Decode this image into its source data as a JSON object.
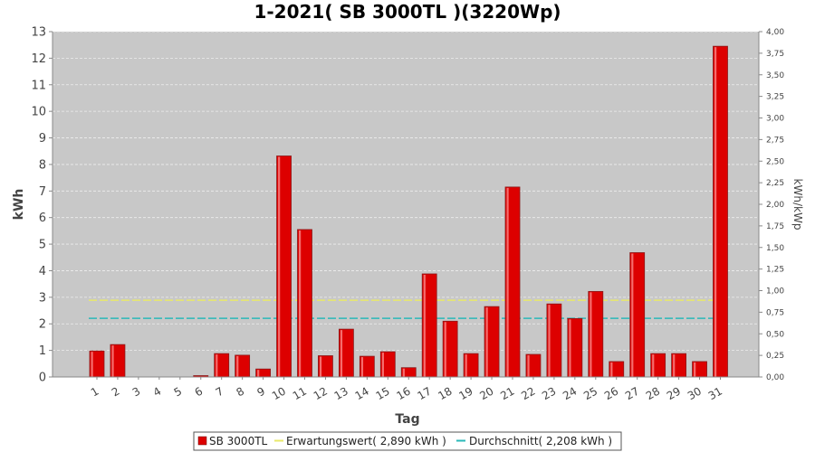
{
  "chart_data": {
    "type": "bar",
    "title": "1-2021( SB 3000TL )(3220Wp)",
    "xlabel": "Tag",
    "ylabel": "kWh",
    "y2label": "kWh/kWp",
    "ylim": [
      0,
      13
    ],
    "y2lim": [
      0,
      4.0
    ],
    "yticks": [
      "0",
      "1",
      "2",
      "3",
      "4",
      "5",
      "6",
      "7",
      "8",
      "9",
      "10",
      "11",
      "12",
      "13"
    ],
    "y2ticks": [
      "0,00",
      "0,25",
      "0,50",
      "0,75",
      "1,00",
      "1,25",
      "1,50",
      "1,75",
      "2,00",
      "2,25",
      "2,50",
      "2,75",
      "3,00",
      "3,25",
      "3,50",
      "3,75",
      "4,00"
    ],
    "categories": [
      "1",
      "2",
      "3",
      "4",
      "5",
      "6",
      "7",
      "8",
      "9",
      "10",
      "11",
      "12",
      "13",
      "14",
      "15",
      "16",
      "17",
      "18",
      "19",
      "20",
      "21",
      "22",
      "23",
      "24",
      "25",
      "26",
      "27",
      "28",
      "29",
      "30",
      "31"
    ],
    "series": [
      {
        "name": "SB 3000TL",
        "values": [
          0.98,
          1.22,
          0,
          0,
          0,
          0.05,
          0.88,
          0.82,
          0.3,
          8.32,
          5.55,
          0.8,
          1.8,
          0.78,
          0.95,
          0.35,
          3.88,
          2.1,
          0.88,
          2.65,
          7.15,
          0.85,
          2.75,
          2.2,
          3.22,
          0.58,
          4.68,
          0.88,
          0.88,
          0.58,
          12.45
        ]
      }
    ],
    "reference_lines": [
      {
        "name": "Erwartungswert( 2,890 kWh )",
        "value": 2.89,
        "color": "#e8e86a"
      },
      {
        "name": "Durchschnitt( 2,208 kWh )",
        "value": 2.208,
        "color": "#2ab8b8"
      }
    ],
    "colors": {
      "bar": "#dd0000",
      "bar_border": "#8a1a1a",
      "plot_bg": "#c8c8c8",
      "grid": "#eeeeee"
    },
    "grid": true,
    "legend_position": "bottom"
  }
}
